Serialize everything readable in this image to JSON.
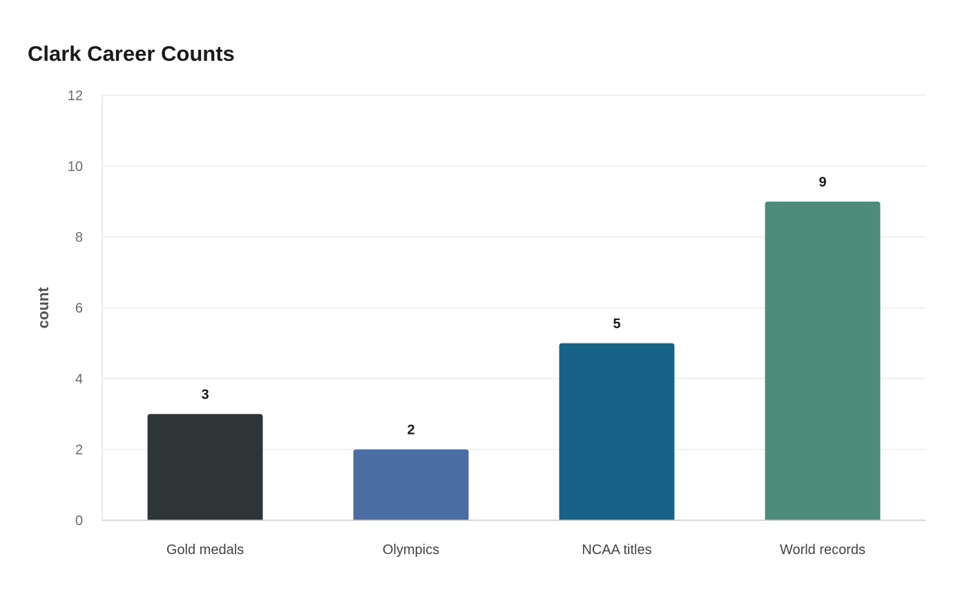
{
  "chart_data": {
    "type": "bar",
    "title": "Clark Career Counts",
    "xlabel": "",
    "ylabel": "count",
    "categories": [
      "Gold medals",
      "Olympics",
      "NCAA titles",
      "World records"
    ],
    "values": [
      3,
      2,
      5,
      9
    ],
    "colors": [
      "#2e3536",
      "#4a6ea4",
      "#176388",
      "#4d8c7a"
    ],
    "ylim": [
      0,
      12
    ],
    "yticks": [
      0,
      2,
      4,
      6,
      8,
      10,
      12
    ],
    "grid": true,
    "legend": "none"
  }
}
